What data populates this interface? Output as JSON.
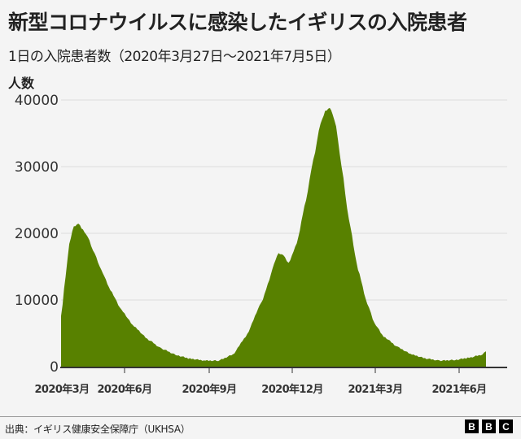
{
  "header": {
    "title": "新型コロナウイルスに感染したイギリスの入院患者",
    "subtitle": "1日の入院患者数（2020年3月27日～2021年7月5日）",
    "y_unit_label": "人数"
  },
  "footer": {
    "source": "出典：イギリス健康安全保障庁（UKHSA）",
    "logo_letters": [
      "B",
      "B",
      "C"
    ]
  },
  "colors": {
    "area_fill": "#588100",
    "gridline": "#dddddd",
    "axis": "#333333",
    "background": "#f4f4f4"
  },
  "chart_data": {
    "type": "area",
    "title": "新型コロナウイルスに感染したイギリスの入院患者",
    "subtitle": "1日の入院患者数（2020年3月27日～2021年7月5日）",
    "xlabel": "",
    "ylabel": "人数",
    "ylim": [
      0,
      40000
    ],
    "yticks": [
      0,
      10000,
      20000,
      30000,
      40000
    ],
    "xticks": [
      "2020年3月",
      "2020年6月",
      "2020年9月",
      "2020年12月",
      "2021年3月",
      "2021年6月"
    ],
    "grid": true,
    "legend": null,
    "x_start": "2020-03-27",
    "x_end": "2021-07-05",
    "x": [
      "2020-03-27",
      "2020-04-01",
      "2020-04-05",
      "2020-04-10",
      "2020-04-15",
      "2020-04-20",
      "2020-04-25",
      "2020-05-01",
      "2020-05-10",
      "2020-05-20",
      "2020-06-01",
      "2020-06-15",
      "2020-07-01",
      "2020-07-15",
      "2020-08-01",
      "2020-08-15",
      "2020-09-01",
      "2020-09-15",
      "2020-10-01",
      "2020-10-15",
      "2020-11-01",
      "2020-11-10",
      "2020-11-15",
      "2020-11-20",
      "2020-11-25",
      "2020-12-01",
      "2020-12-10",
      "2020-12-20",
      "2020-12-28",
      "2021-01-05",
      "2021-01-10",
      "2021-01-15",
      "2021-01-18",
      "2021-01-22",
      "2021-01-28",
      "2021-02-05",
      "2021-02-15",
      "2021-02-25",
      "2021-03-05",
      "2021-03-15",
      "2021-04-01",
      "2021-04-15",
      "2021-05-01",
      "2021-05-15",
      "2021-06-01",
      "2021-06-15",
      "2021-07-01",
      "2021-07-05"
    ],
    "values": [
      7500,
      13500,
      18500,
      21000,
      21500,
      20500,
      19500,
      17500,
      14500,
      11500,
      8500,
      6000,
      4000,
      2700,
      1700,
      1200,
      900,
      900,
      1800,
      4500,
      9500,
      13000,
      15500,
      17000,
      16800,
      15500,
      18500,
      25000,
      31000,
      36500,
      38300,
      38800,
      38000,
      36000,
      30000,
      22000,
      14500,
      9500,
      6500,
      4500,
      2800,
      1800,
      1200,
      900,
      1000,
      1300,
      1800,
      2300
    ],
    "annotations": []
  }
}
